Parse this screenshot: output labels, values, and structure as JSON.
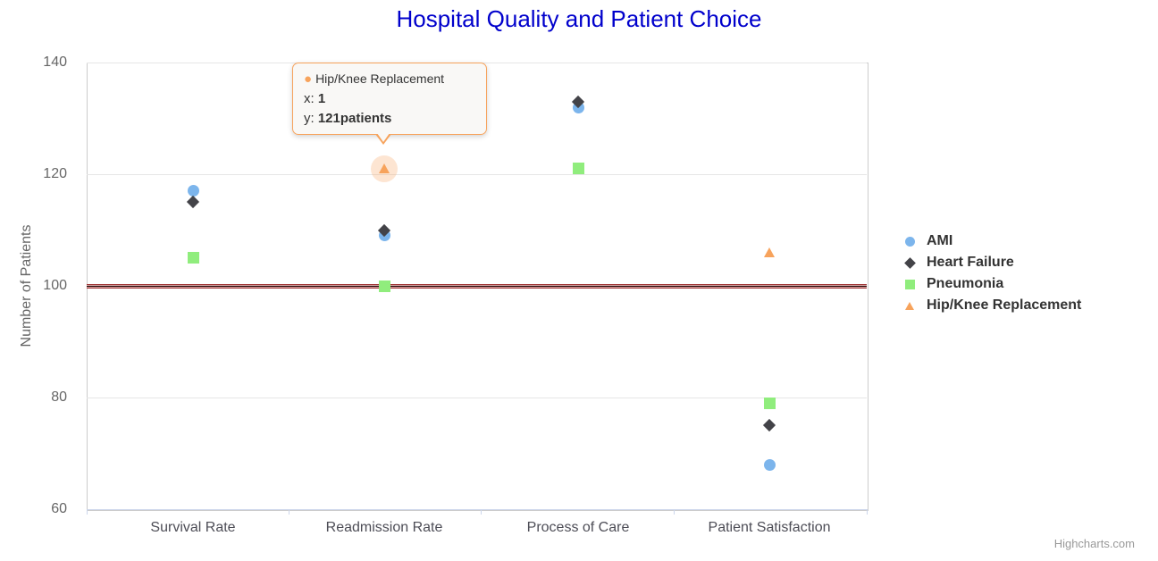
{
  "title": "Hospital Quality and Patient Choice",
  "credits_label": "Highcharts.com",
  "colors": {
    "title": "#0000cc",
    "axis_label": "#666666",
    "x_label": "#4d4d56",
    "gridline": "#e6e6e6",
    "axis_line": "#ccd6eb",
    "plot_border": "#cccccc",
    "plot_line": "#8b1a1a",
    "tooltip_border": "#f7a35c",
    "legend_text": "#333333"
  },
  "tooltip": {
    "series_name": "Hip/Knee Replacement",
    "bullet": "●",
    "x_label": "x:",
    "x_value": "1",
    "y_label": "y:",
    "y_value": "121patients",
    "target": {
      "series": "Hip/Knee Replacement",
      "category_index": 1,
      "value": 121
    }
  },
  "chart_data": {
    "type": "scatter",
    "title": "Hospital Quality and Patient Choice",
    "xlabel": "",
    "ylabel": "Number of Patients",
    "categories": [
      "Survival Rate",
      "Readmission Rate",
      "Process of Care",
      "Patient Satisfaction"
    ],
    "yticks": [
      60,
      80,
      100,
      120,
      140
    ],
    "ylim": [
      60,
      140
    ],
    "grid": true,
    "legend_position": "right",
    "plot_line": {
      "y": 100,
      "color": "#8b1a1a"
    },
    "series": [
      {
        "name": "AMI",
        "marker": "circle",
        "color": "#7cb5ec",
        "values": [
          117,
          109,
          132,
          68
        ]
      },
      {
        "name": "Heart Failure",
        "marker": "diamond",
        "color": "#434348",
        "values": [
          115,
          110,
          133,
          75
        ]
      },
      {
        "name": "Pneumonia",
        "marker": "square",
        "color": "#90ed7d",
        "values": [
          105,
          100,
          121,
          79
        ]
      },
      {
        "name": "Hip/Knee Replacement",
        "marker": "triangle",
        "color": "#f7a35c",
        "values": [
          null,
          121,
          null,
          106
        ]
      }
    ],
    "highlighted_point": {
      "series": "Hip/Knee Replacement",
      "category_index": 1,
      "value": 121
    }
  }
}
